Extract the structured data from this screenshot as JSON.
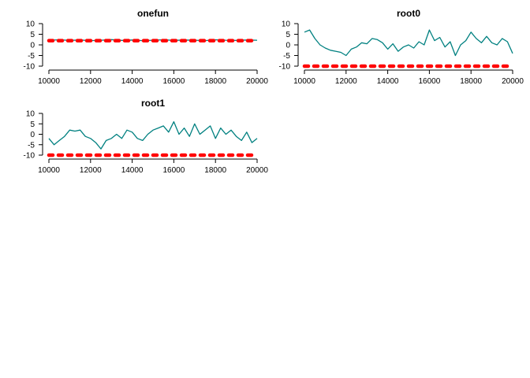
{
  "chart_data": [
    {
      "type": "line",
      "title": "onefun",
      "xlim": [
        10000,
        20000
      ],
      "ylim": [
        -10,
        10
      ],
      "x_ticks": [
        10000,
        12000,
        14000,
        16000,
        18000,
        20000
      ],
      "y_ticks": [
        10,
        5,
        0,
        -5,
        -10
      ],
      "series": [
        {
          "color": "#008080",
          "style": "solid",
          "x": [
            10000,
            10500,
            11000,
            11500,
            12000,
            12500,
            13000,
            13500,
            14000,
            14500,
            15000,
            15500,
            16000,
            16500,
            17000,
            17500,
            18000,
            18500,
            19000,
            19500,
            20000
          ],
          "y": [
            2.2,
            2.4,
            2.1,
            2.3,
            2.0,
            2.2,
            2.5,
            2.1,
            2.3,
            2.0,
            2.2,
            2.4,
            2.1,
            2.3,
            2.2,
            2.0,
            2.4,
            2.2,
            2.1,
            2.3,
            2.2
          ]
        },
        {
          "color": "#ff0000",
          "style": "dashed",
          "x": [
            10000,
            20000
          ],
          "y": [
            2.0,
            2.0
          ]
        }
      ]
    },
    {
      "type": "line",
      "title": "root0",
      "xlim": [
        10000,
        20000
      ],
      "ylim": [
        -10,
        10
      ],
      "x_ticks": [
        10000,
        12000,
        14000,
        16000,
        18000,
        20000
      ],
      "y_ticks": [
        10,
        5,
        0,
        -5,
        -10
      ],
      "series": [
        {
          "color": "#008080",
          "style": "solid",
          "x": [
            10000,
            10250,
            10500,
            10750,
            11000,
            11250,
            11500,
            11750,
            12000,
            12250,
            12500,
            12750,
            13000,
            13250,
            13500,
            13750,
            14000,
            14250,
            14500,
            14750,
            15000,
            15250,
            15500,
            15750,
            16000,
            16250,
            16500,
            16750,
            17000,
            17250,
            17500,
            17750,
            18000,
            18250,
            18500,
            18750,
            19000,
            19250,
            19500,
            19750,
            20000
          ],
          "y": [
            6.0,
            7.0,
            3.0,
            0.0,
            -1.5,
            -2.5,
            -3.0,
            -3.5,
            -5.0,
            -2.0,
            -1.0,
            1.0,
            0.5,
            3.0,
            2.5,
            1.0,
            -2.0,
            0.5,
            -3.0,
            -1.0,
            0.0,
            -1.5,
            1.5,
            0.0,
            7.0,
            2.0,
            3.5,
            -1.0,
            1.5,
            -5.0,
            0.0,
            2.0,
            6.0,
            3.0,
            1.0,
            4.0,
            1.0,
            0.0,
            3.0,
            1.5,
            -4.0
          ]
        },
        {
          "color": "#ff0000",
          "style": "dashed",
          "x": [
            10000,
            20000
          ],
          "y": [
            -10,
            -10
          ]
        }
      ]
    },
    {
      "type": "line",
      "title": "root1",
      "xlim": [
        10000,
        20000
      ],
      "ylim": [
        -10,
        10
      ],
      "x_ticks": [
        10000,
        12000,
        14000,
        16000,
        18000,
        20000
      ],
      "y_ticks": [
        10,
        5,
        0,
        -5,
        -10
      ],
      "series": [
        {
          "color": "#008080",
          "style": "solid",
          "x": [
            10000,
            10250,
            10500,
            10750,
            11000,
            11250,
            11500,
            11750,
            12000,
            12250,
            12500,
            12750,
            13000,
            13250,
            13500,
            13750,
            14000,
            14250,
            14500,
            14750,
            15000,
            15250,
            15500,
            15750,
            16000,
            16250,
            16500,
            16750,
            17000,
            17250,
            17500,
            17750,
            18000,
            18250,
            18500,
            18750,
            19000,
            19250,
            19500,
            19750,
            20000
          ],
          "y": [
            -2.0,
            -5.0,
            -3.0,
            -1.0,
            2.0,
            1.5,
            2.0,
            -1.0,
            -2.0,
            -4.0,
            -7.0,
            -3.0,
            -2.0,
            0.0,
            -2.0,
            2.0,
            1.0,
            -2.0,
            -3.0,
            0.0,
            2.0,
            3.0,
            4.0,
            1.0,
            6.0,
            0.0,
            3.0,
            -1.0,
            5.0,
            0.0,
            2.0,
            4.0,
            -2.0,
            3.0,
            0.0,
            2.0,
            -1.0,
            -3.0,
            1.0,
            -4.0,
            -2.0
          ]
        },
        {
          "color": "#ff0000",
          "style": "dashed",
          "x": [
            10000,
            20000
          ],
          "y": [
            -10,
            -10
          ]
        }
      ]
    }
  ]
}
